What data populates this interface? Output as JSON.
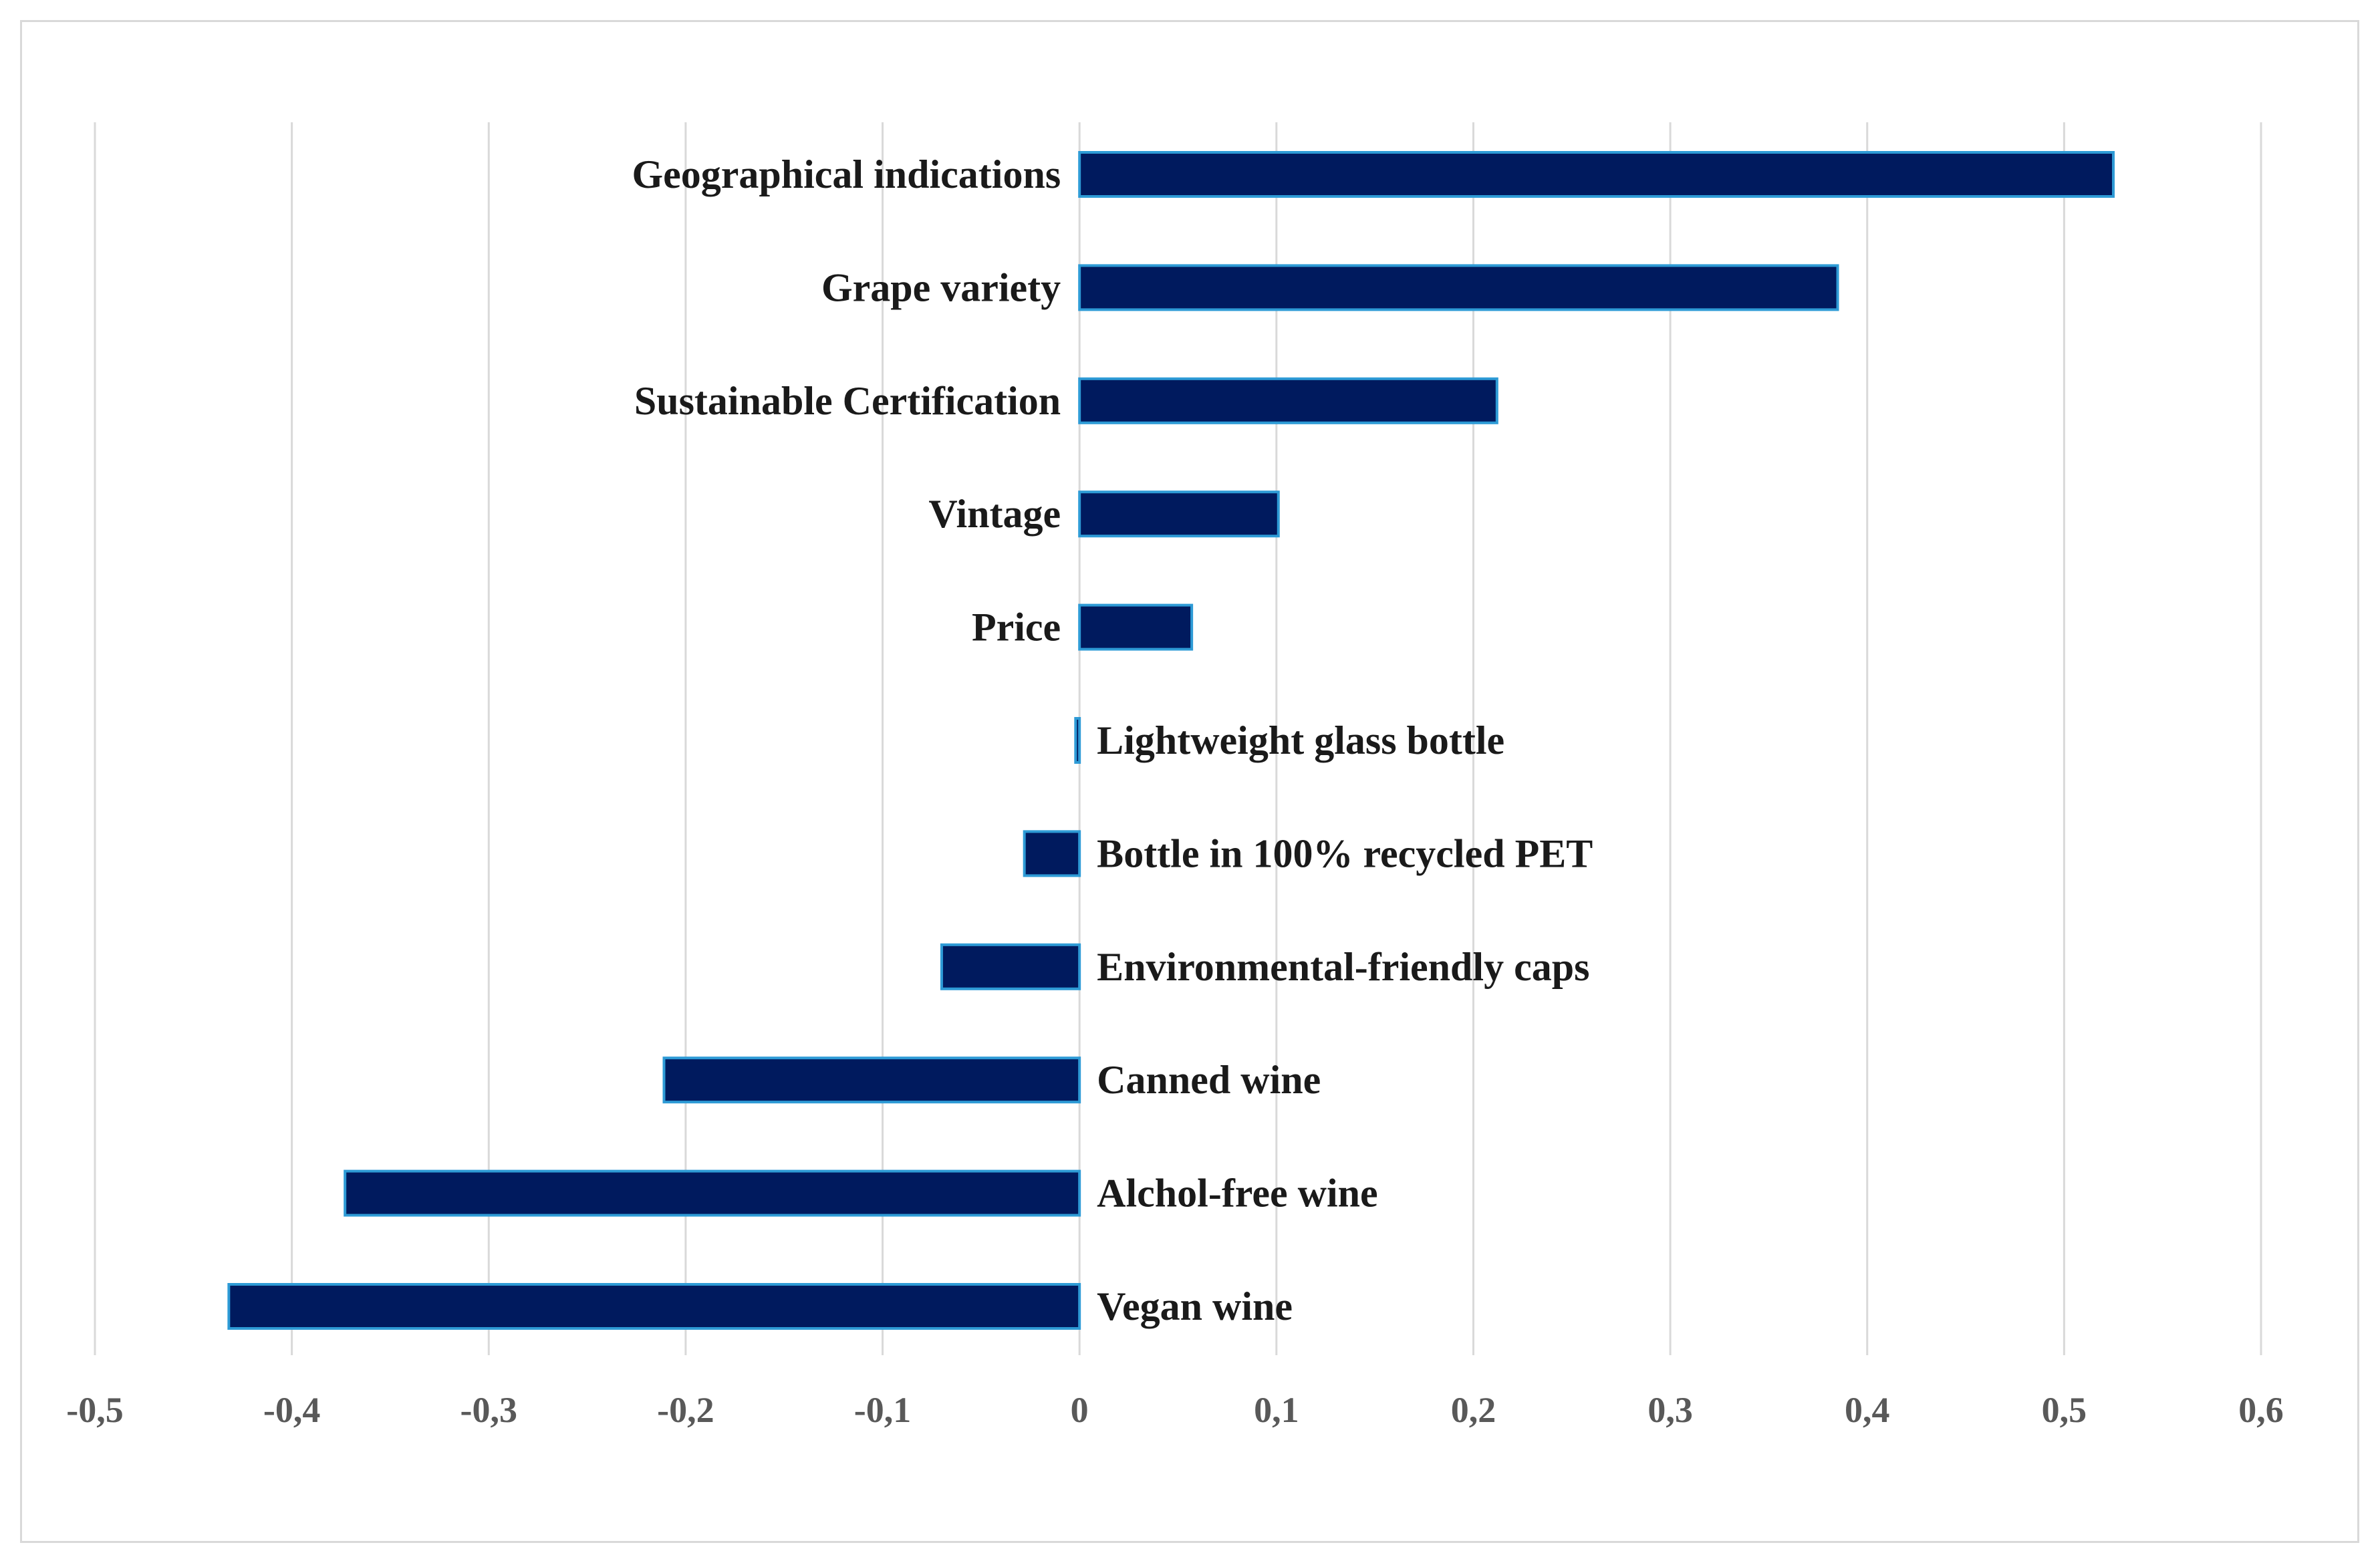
{
  "chart_data": {
    "type": "bar",
    "orientation": "horizontal",
    "title": "",
    "xlabel": "",
    "ylabel": "",
    "xlim": [
      -0.5,
      0.6
    ],
    "x_ticks": [
      -0.5,
      -0.4,
      -0.3,
      -0.2,
      -0.1,
      0,
      0.1,
      0.2,
      0.3,
      0.4,
      0.5,
      0.6
    ],
    "x_tick_labels": [
      "-0,5",
      "-0,4",
      "-0,3",
      "-0,2",
      "-0,1",
      "0",
      "0,1",
      "0,2",
      "0,3",
      "0,4",
      "0,5",
      "0,6"
    ],
    "grid": "vertical",
    "legend": "none",
    "categories": [
      "Geographical indications",
      "Grape variety",
      "Sustainable Certification",
      "Vintage",
      "Price",
      "Lightweight glass bottle",
      "Bottle in 100% recycled PET",
      "Environmental-friendly caps",
      "Canned wine",
      "Alchol-free wine",
      "Vegan wine"
    ],
    "values": [
      0.525,
      0.385,
      0.212,
      0.101,
      0.057,
      -0.002,
      -0.028,
      -0.07,
      -0.211,
      -0.373,
      -0.432
    ],
    "colors": {
      "bar_fill": "#001a5e",
      "bar_outline": "#2e9bd6",
      "grid": "#d9d9d9",
      "tick_text": "#595959",
      "label_text": "#1a1a1a"
    }
  }
}
